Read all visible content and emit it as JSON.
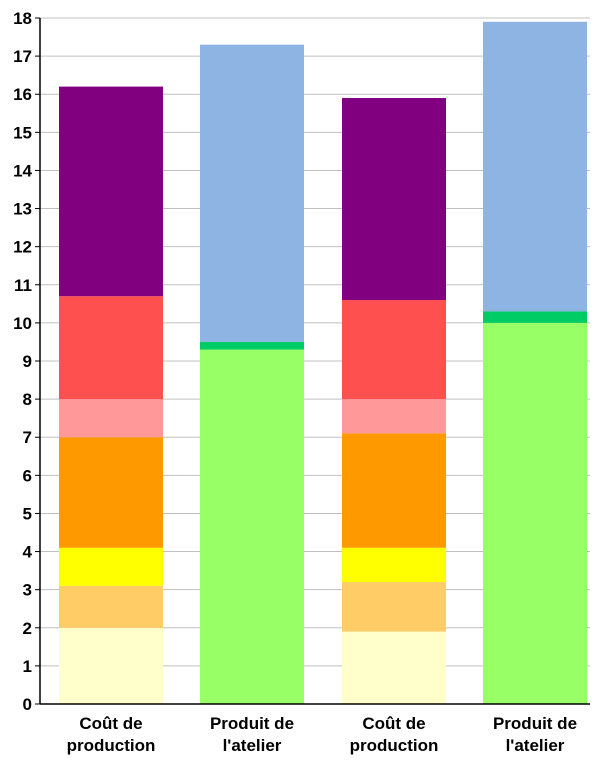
{
  "chart_data": {
    "type": "bar",
    "stacked": true,
    "title": "",
    "xlabel": "",
    "ylabel": "",
    "ylim": [
      0,
      18
    ],
    "yticks": [
      "0",
      "1",
      "2",
      "3",
      "4",
      "5",
      "6",
      "7",
      "8",
      "9",
      "10",
      "11",
      "12",
      "13",
      "14",
      "15",
      "16",
      "17",
      "18"
    ],
    "grid": true,
    "legend": "none",
    "categories": [
      [
        "Coût de",
        "production"
      ],
      [
        "Produit de",
        "l'atelier"
      ],
      [
        "Coût de",
        "production"
      ],
      [
        "Produit de",
        "l'atelier"
      ]
    ],
    "bars": [
      {
        "segments": [
          {
            "value": 2.0,
            "color": "#ffffcc"
          },
          {
            "value": 1.1,
            "color": "#ffcc66"
          },
          {
            "value": 1.0,
            "color": "#ffff00"
          },
          {
            "value": 2.9,
            "color": "#ff9900"
          },
          {
            "value": 1.0,
            "color": "#ff9999"
          },
          {
            "value": 2.7,
            "color": "#ff5050"
          },
          {
            "value": 5.5,
            "color": "#800080"
          }
        ]
      },
      {
        "segments": [
          {
            "value": 9.3,
            "color": "#99ff66"
          },
          {
            "value": 0.2,
            "color": "#00cc66"
          },
          {
            "value": 7.8,
            "color": "#8eb4e3"
          }
        ]
      },
      {
        "segments": [
          {
            "value": 1.9,
            "color": "#ffffcc"
          },
          {
            "value": 1.3,
            "color": "#ffcc66"
          },
          {
            "value": 0.9,
            "color": "#ffff00"
          },
          {
            "value": 3.0,
            "color": "#ff9900"
          },
          {
            "value": 0.9,
            "color": "#ff9999"
          },
          {
            "value": 2.6,
            "color": "#ff5050"
          },
          {
            "value": 5.3,
            "color": "#800080"
          }
        ]
      },
      {
        "segments": [
          {
            "value": 10.0,
            "color": "#99ff66"
          },
          {
            "value": 0.3,
            "color": "#00cc66"
          },
          {
            "value": 7.6,
            "color": "#8eb4e3"
          }
        ]
      }
    ]
  }
}
